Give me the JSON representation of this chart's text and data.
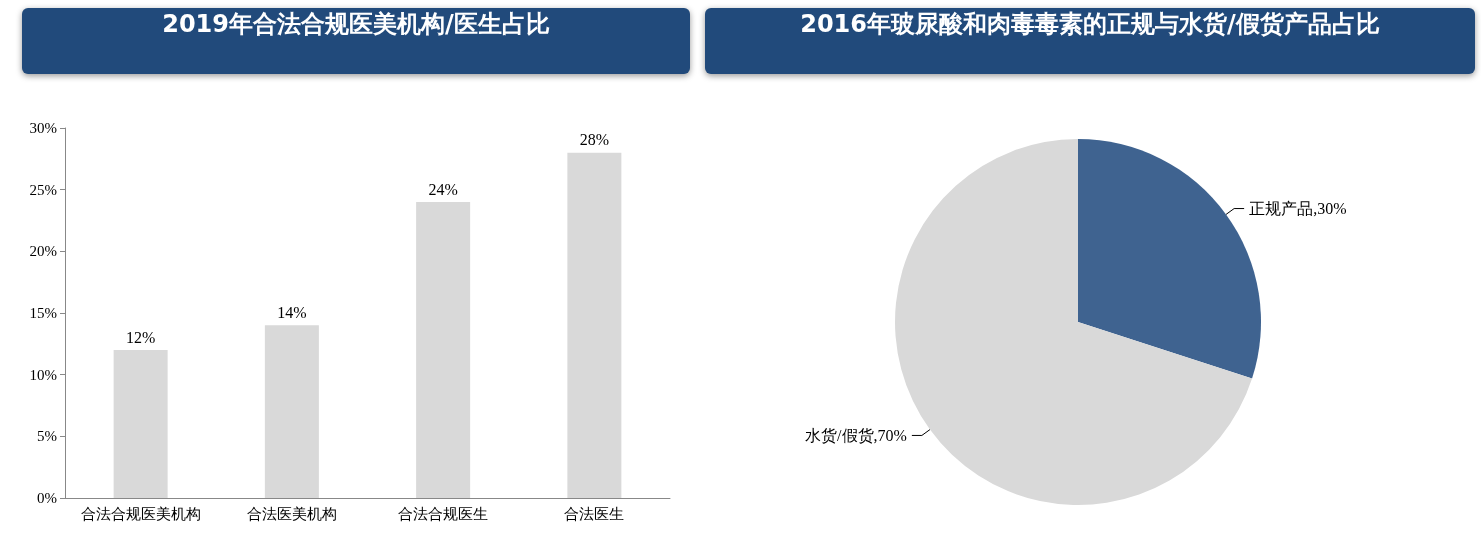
{
  "chart_data": [
    {
      "type": "bar",
      "title": "2019年合法合规医美机构/医生占比",
      "categories": [
        "合法合规医美机构",
        "合法医美机构",
        "合法合规医生",
        "合法医生"
      ],
      "values": [
        12,
        14,
        24,
        28
      ],
      "color": "#d9d9d9",
      "value_labels": [
        "12%",
        "14%",
        "24%",
        "28%"
      ],
      "ylim": [
        0,
        30
      ],
      "yticks": [
        {
          "value": 0,
          "label": "0%"
        },
        {
          "value": 5,
          "label": "5%"
        },
        {
          "value": 10,
          "label": "10%"
        },
        {
          "value": 15,
          "label": "15%"
        },
        {
          "value": 20,
          "label": "20%"
        },
        {
          "value": 25,
          "label": "25%"
        },
        {
          "value": 30,
          "label": "30%"
        }
      ],
      "grid": false,
      "legend": false
    },
    {
      "type": "pie",
      "title": "2016年玻尿酸和肉毒毒素的正规与水货/假货产品占比",
      "categories": [
        "正规产品",
        "水货/假货"
      ],
      "values": [
        30,
        70
      ],
      "colors": [
        "#3f6390",
        "#d9d9d9"
      ],
      "value_labels": [
        "30%",
        "70%"
      ],
      "legend": false
    }
  ]
}
